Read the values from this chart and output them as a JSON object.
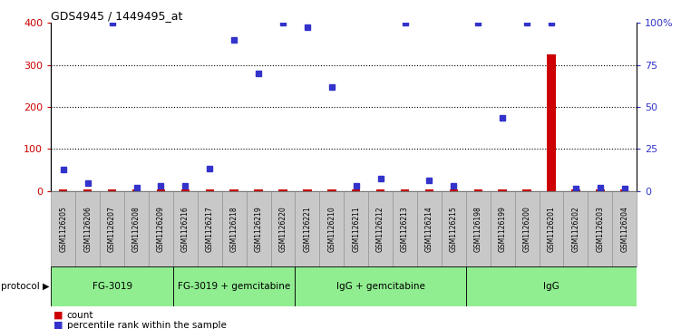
{
  "title": "GDS4945 / 1449495_at",
  "samples": [
    "GSM1126205",
    "GSM1126206",
    "GSM1126207",
    "GSM1126208",
    "GSM1126209",
    "GSM1126216",
    "GSM1126217",
    "GSM1126218",
    "GSM1126219",
    "GSM1126220",
    "GSM1126221",
    "GSM1126210",
    "GSM1126211",
    "GSM1126212",
    "GSM1126213",
    "GSM1126214",
    "GSM1126215",
    "GSM1126198",
    "GSM1126199",
    "GSM1126200",
    "GSM1126201",
    "GSM1126202",
    "GSM1126203",
    "GSM1126204"
  ],
  "count_values": [
    3,
    3,
    3,
    3,
    3,
    3,
    3,
    3,
    3,
    3,
    3,
    3,
    3,
    3,
    3,
    3,
    3,
    3,
    3,
    3,
    325,
    3,
    3,
    3
  ],
  "percentile_values": [
    50,
    18,
    400,
    8,
    13,
    13,
    52,
    360,
    280,
    400,
    390,
    248,
    13,
    30,
    400,
    24,
    13,
    400,
    175,
    400,
    400,
    5,
    8,
    5
  ],
  "groups": [
    {
      "label": "FG-3019",
      "start": 0,
      "end": 5
    },
    {
      "label": "FG-3019 + gemcitabine",
      "start": 5,
      "end": 10
    },
    {
      "label": "IgG + gemcitabine",
      "start": 10,
      "end": 17
    },
    {
      "label": "IgG",
      "start": 17,
      "end": 24
    }
  ],
  "group_color": "#90EE90",
  "left_color": "#cc0000",
  "right_color": "#3333cc",
  "right_ylabels": [
    "0",
    "25",
    "50",
    "75",
    "100%"
  ],
  "right_yticks": [
    0,
    25,
    50,
    75,
    100
  ],
  "left_yticks": [
    0,
    100,
    200,
    300,
    400
  ],
  "label_box_color": "#c8c8c8",
  "label_box_edge": "#888888"
}
